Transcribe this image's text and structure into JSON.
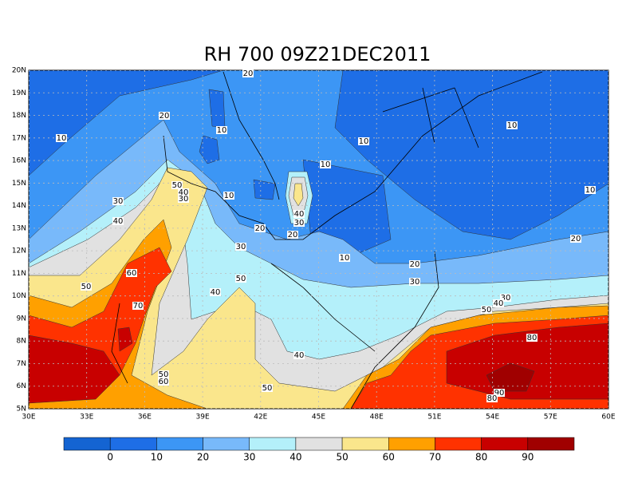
{
  "map": {
    "title": "RH 700 09Z21DEC2011",
    "lon_range": [
      30,
      60
    ],
    "lat_range": [
      5,
      20
    ],
    "lat_ticks": [
      {
        "value": 20,
        "label": "20N"
      },
      {
        "value": 19,
        "label": "19N"
      },
      {
        "value": 18,
        "label": "18N"
      },
      {
        "value": 17,
        "label": "17N"
      },
      {
        "value": 16,
        "label": "16N"
      },
      {
        "value": 15,
        "label": "15N"
      },
      {
        "value": 14,
        "label": "14N"
      },
      {
        "value": 13,
        "label": "13N"
      },
      {
        "value": 12,
        "label": "12N"
      },
      {
        "value": 11,
        "label": "11N"
      },
      {
        "value": 10,
        "label": "10N"
      },
      {
        "value": 9,
        "label": "9N"
      },
      {
        "value": 8,
        "label": "8N"
      },
      {
        "value": 7,
        "label": "7N"
      },
      {
        "value": 6,
        "label": "6N"
      },
      {
        "value": 5,
        "label": "5N"
      }
    ],
    "lon_ticks": [
      {
        "value": 30,
        "label": "30E"
      },
      {
        "value": 33,
        "label": "33E"
      },
      {
        "value": 36,
        "label": "36E"
      },
      {
        "value": 39,
        "label": "39E"
      },
      {
        "value": 42,
        "label": "42E"
      },
      {
        "value": 45,
        "label": "45E"
      },
      {
        "value": 48,
        "label": "48E"
      },
      {
        "value": 51,
        "label": "51E"
      },
      {
        "value": 54,
        "label": "54E"
      },
      {
        "value": 57,
        "label": "57E"
      },
      {
        "value": 60,
        "label": "60E"
      }
    ],
    "contour_labels": [
      "20",
      "10",
      "20",
      "10",
      "10",
      "10",
      "10",
      "10",
      "50",
      "40",
      "30",
      "10",
      "30",
      "40",
      "40",
      "30",
      "20",
      "20",
      "20",
      "30",
      "10",
      "20",
      "60",
      "50",
      "30",
      "50",
      "40",
      "30",
      "40",
      "50",
      "70",
      "80",
      "40",
      "50",
      "60",
      "50",
      "90",
      "80"
    ],
    "colorbar": {
      "colors": [
        "#1464d2",
        "#1e6ee6",
        "#3c96f5",
        "#78b9fa",
        "#b4f0fa",
        "#e1e1e1",
        "#fae68c",
        "#ffa000",
        "#ff3200",
        "#c80000",
        "#a00000"
      ],
      "labels": [
        0,
        10,
        20,
        30,
        40,
        50,
        60,
        70,
        80,
        90
      ]
    }
  }
}
